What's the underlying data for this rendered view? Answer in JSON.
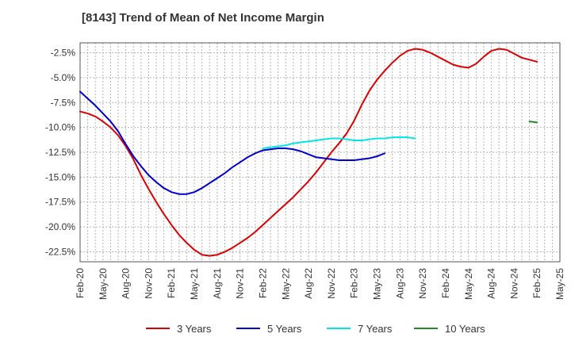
{
  "chart_data": {
    "type": "line",
    "title": "[8143]  Trend of Mean of Net Income Margin",
    "xlabel": "",
    "ylabel": "",
    "x_tick_labels": [
      "Feb-20",
      "May-20",
      "Aug-20",
      "Nov-20",
      "Feb-21",
      "May-21",
      "Aug-21",
      "Nov-21",
      "Feb-22",
      "May-22",
      "Aug-22",
      "Nov-22",
      "Feb-23",
      "May-23",
      "Aug-23",
      "Nov-23",
      "Feb-24",
      "May-24",
      "Aug-24",
      "Nov-24",
      "Feb-25",
      "May-25"
    ],
    "y_tick_labels": [
      "-2.5%",
      "-5.0%",
      "-7.5%",
      "-10.0%",
      "-12.5%",
      "-15.0%",
      "-17.5%",
      "-20.0%",
      "-22.5%"
    ],
    "y_tick_values": [
      -2.5,
      -5.0,
      -7.5,
      -10.0,
      -12.5,
      -15.0,
      -17.5,
      -20.0,
      -22.5
    ],
    "ylim": [
      -23.5,
      -1.5
    ],
    "grid": true,
    "legend_position": "bottom",
    "series": [
      {
        "name": "3 Years",
        "color": "#dd0000",
        "points": [
          [
            "Feb-20",
            -8.4
          ],
          [
            "Mar-20",
            -8.6
          ],
          [
            "Apr-20",
            -8.9
          ],
          [
            "May-20",
            -9.4
          ],
          [
            "Jun-20",
            -10.0
          ],
          [
            "Jul-20",
            -10.8
          ],
          [
            "Aug-20",
            -11.9
          ],
          [
            "Sep-20",
            -13.2
          ],
          [
            "Oct-20",
            -14.8
          ],
          [
            "Nov-20",
            -16.2
          ],
          [
            "Dec-20",
            -17.5
          ],
          [
            "Jan-21",
            -18.7
          ],
          [
            "Feb-21",
            -19.8
          ],
          [
            "Mar-21",
            -20.8
          ],
          [
            "Apr-21",
            -21.6
          ],
          [
            "May-21",
            -22.3
          ],
          [
            "Jun-21",
            -22.8
          ],
          [
            "Jul-21",
            -22.9
          ],
          [
            "Aug-21",
            -22.8
          ],
          [
            "Sep-21",
            -22.5
          ],
          [
            "Oct-21",
            -22.1
          ],
          [
            "Nov-21",
            -21.6
          ],
          [
            "Dec-21",
            -21.1
          ],
          [
            "Jan-22",
            -20.5
          ],
          [
            "Feb-22",
            -19.8
          ],
          [
            "Mar-22",
            -19.1
          ],
          [
            "Apr-22",
            -18.4
          ],
          [
            "May-22",
            -17.7
          ],
          [
            "Jun-22",
            -17.0
          ],
          [
            "Jul-22",
            -16.2
          ],
          [
            "Aug-22",
            -15.4
          ],
          [
            "Sep-22",
            -14.5
          ],
          [
            "Oct-22",
            -13.5
          ],
          [
            "Nov-22",
            -12.5
          ],
          [
            "Dec-22",
            -11.6
          ],
          [
            "Jan-23",
            -10.6
          ],
          [
            "Feb-23",
            -9.3
          ],
          [
            "Mar-23",
            -7.7
          ],
          [
            "Apr-23",
            -6.3
          ],
          [
            "May-23",
            -5.2
          ],
          [
            "Jun-23",
            -4.3
          ],
          [
            "Jul-23",
            -3.5
          ],
          [
            "Aug-23",
            -2.8
          ],
          [
            "Sep-23",
            -2.3
          ],
          [
            "Oct-23",
            -2.1
          ],
          [
            "Nov-23",
            -2.2
          ],
          [
            "Dec-23",
            -2.5
          ],
          [
            "Jan-24",
            -2.9
          ],
          [
            "Feb-24",
            -3.3
          ],
          [
            "Mar-24",
            -3.7
          ],
          [
            "Apr-24",
            -3.9
          ],
          [
            "May-24",
            -4.0
          ],
          [
            "Jun-24",
            -3.6
          ],
          [
            "Jul-24",
            -2.9
          ],
          [
            "Aug-24",
            -2.3
          ],
          [
            "Sep-24",
            -2.1
          ],
          [
            "Oct-24",
            -2.2
          ],
          [
            "Nov-24",
            -2.6
          ],
          [
            "Dec-24",
            -3.0
          ],
          [
            "Jan-25",
            -3.2
          ],
          [
            "Feb-25",
            -3.4
          ]
        ]
      },
      {
        "name": "5 Years",
        "color": "#0000cc",
        "points": [
          [
            "Feb-20",
            -6.4
          ],
          [
            "Mar-20",
            -7.1
          ],
          [
            "Apr-20",
            -7.8
          ],
          [
            "May-20",
            -8.6
          ],
          [
            "Jun-20",
            -9.4
          ],
          [
            "Jul-20",
            -10.4
          ],
          [
            "Aug-20",
            -11.7
          ],
          [
            "Sep-20",
            -12.9
          ],
          [
            "Oct-20",
            -13.9
          ],
          [
            "Nov-20",
            -14.8
          ],
          [
            "Dec-20",
            -15.5
          ],
          [
            "Jan-21",
            -16.1
          ],
          [
            "Feb-21",
            -16.5
          ],
          [
            "Mar-21",
            -16.7
          ],
          [
            "Apr-21",
            -16.7
          ],
          [
            "May-21",
            -16.5
          ],
          [
            "Jun-21",
            -16.1
          ],
          [
            "Jul-21",
            -15.6
          ],
          [
            "Aug-21",
            -15.1
          ],
          [
            "Sep-21",
            -14.6
          ],
          [
            "Oct-21",
            -14.0
          ],
          [
            "Nov-21",
            -13.5
          ],
          [
            "Dec-21",
            -13.0
          ],
          [
            "Jan-22",
            -12.6
          ],
          [
            "Feb-22",
            -12.3
          ],
          [
            "Mar-22",
            -12.2
          ],
          [
            "Apr-22",
            -12.1
          ],
          [
            "May-22",
            -12.1
          ],
          [
            "Jun-22",
            -12.2
          ],
          [
            "Jul-22",
            -12.4
          ],
          [
            "Aug-22",
            -12.7
          ],
          [
            "Sep-22",
            -13.0
          ],
          [
            "Oct-22",
            -13.1
          ],
          [
            "Nov-22",
            -13.2
          ],
          [
            "Dec-22",
            -13.3
          ],
          [
            "Jan-23",
            -13.3
          ],
          [
            "Feb-23",
            -13.3
          ],
          [
            "Mar-23",
            -13.2
          ],
          [
            "Apr-23",
            -13.1
          ],
          [
            "May-23",
            -12.9
          ],
          [
            "Jun-23",
            -12.6
          ]
        ]
      },
      {
        "name": "7 Years",
        "color": "#00e5e5",
        "points": [
          [
            "Feb-22",
            -12.1
          ],
          [
            "Mar-22",
            -12.0
          ],
          [
            "Apr-22",
            -11.9
          ],
          [
            "May-22",
            -11.8
          ],
          [
            "Jun-22",
            -11.6
          ],
          [
            "Jul-22",
            -11.5
          ],
          [
            "Aug-22",
            -11.4
          ],
          [
            "Sep-22",
            -11.3
          ],
          [
            "Oct-22",
            -11.2
          ],
          [
            "Nov-22",
            -11.1
          ],
          [
            "Dec-22",
            -11.1
          ],
          [
            "Jan-23",
            -11.2
          ],
          [
            "Feb-23",
            -11.3
          ],
          [
            "Mar-23",
            -11.3
          ],
          [
            "Apr-23",
            -11.2
          ],
          [
            "May-23",
            -11.1
          ],
          [
            "Jun-23",
            -11.1
          ],
          [
            "Jul-23",
            -11.0
          ],
          [
            "Aug-23",
            -11.0
          ],
          [
            "Sep-23",
            -11.0
          ],
          [
            "Oct-23",
            -11.1
          ]
        ]
      },
      {
        "name": "10 Years",
        "color": "#228b22",
        "points": [
          [
            "Jan-25",
            -9.4
          ],
          [
            "Feb-25",
            -9.5
          ]
        ]
      }
    ]
  }
}
